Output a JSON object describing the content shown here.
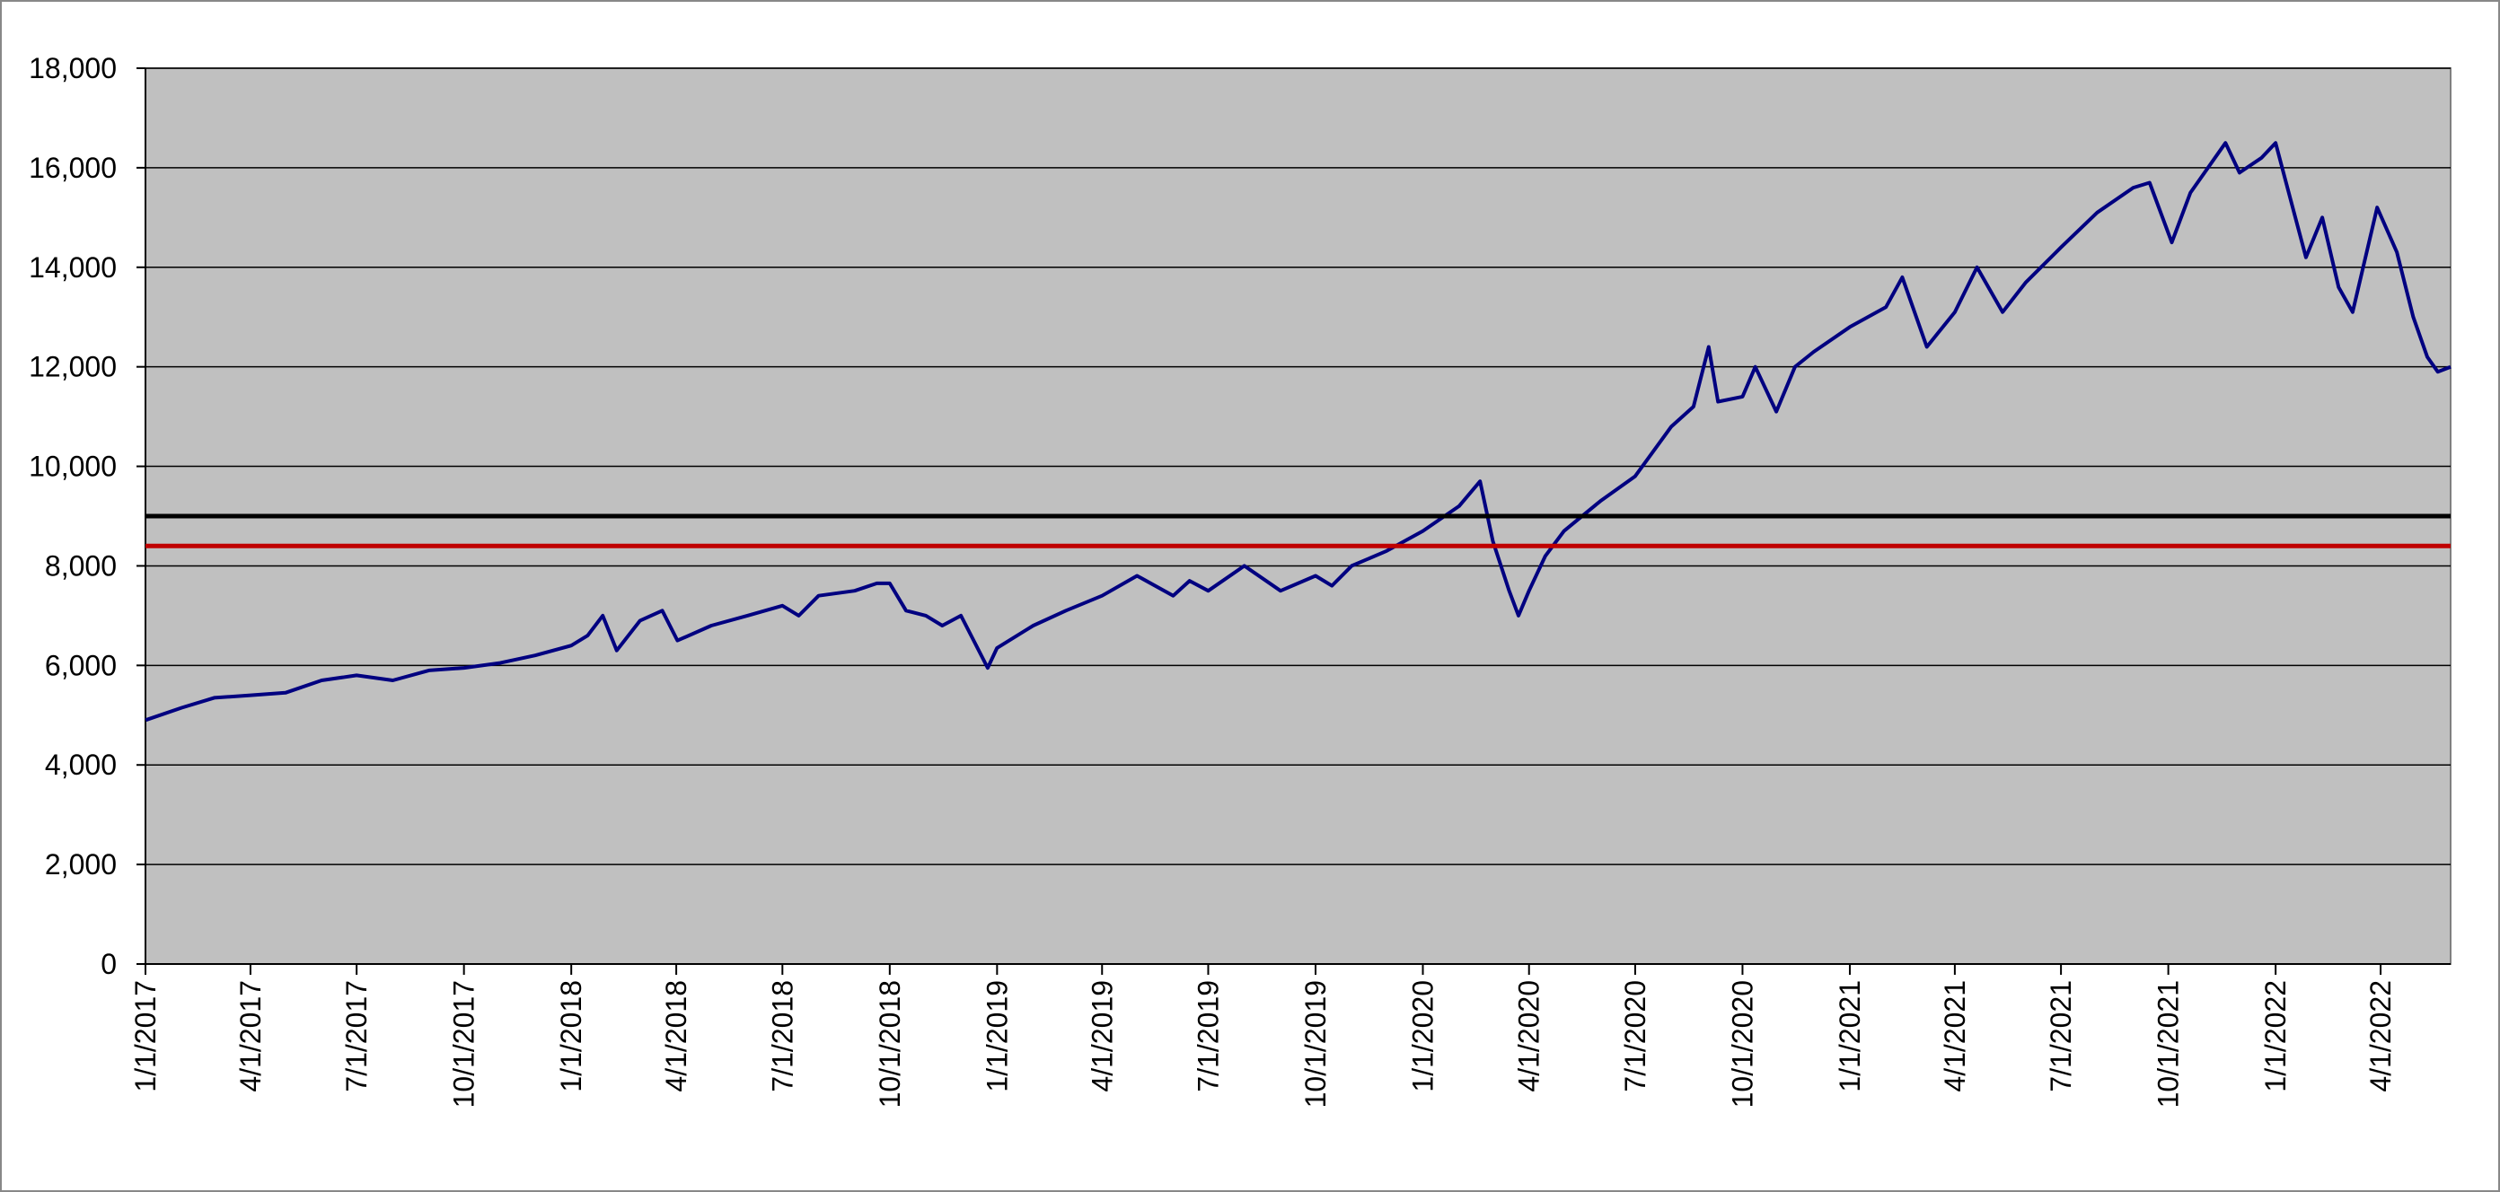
{
  "chart_data": {
    "type": "line",
    "x": [
      "1/1/2017",
      "2/1/2017",
      "3/1/2017",
      "4/1/2017",
      "5/1/2017",
      "6/1/2017",
      "7/1/2017",
      "8/1/2017",
      "9/1/2017",
      "10/1/2017",
      "11/1/2017",
      "12/1/2017",
      "1/1/2018",
      "1/15/2018",
      "1/28/2018",
      "2/9/2018",
      "3/1/2018",
      "3/20/2018",
      "4/2/2018",
      "5/1/2018",
      "6/1/2018",
      "7/1/2018",
      "7/15/2018",
      "8/1/2018",
      "9/1/2018",
      "9/20/2018",
      "10/1/2018",
      "10/15/2018",
      "11/1/2018",
      "11/15/2018",
      "12/1/2018",
      "12/24/2018",
      "1/1/2019",
      "2/1/2019",
      "3/1/2019",
      "4/1/2019",
      "5/1/2019",
      "6/1/2019",
      "6/15/2019",
      "7/1/2019",
      "8/1/2019",
      "9/1/2019",
      "10/1/2019",
      "10/15/2019",
      "11/1/2019",
      "12/1/2019",
      "1/1/2020",
      "2/1/2020",
      "2/19/2020",
      "3/1/2020",
      "3/15/2020",
      "3/23/2020",
      "4/1/2020",
      "4/15/2020",
      "5/1/2020",
      "6/1/2020",
      "7/1/2020",
      "8/1/2020",
      "8/20/2020",
      "9/2/2020",
      "9/10/2020",
      "10/1/2020",
      "10/12/2020",
      "10/30/2020",
      "11/15/2020",
      "12/1/2020",
      "1/1/2021",
      "2/1/2021",
      "2/15/2021",
      "3/8/2021",
      "4/1/2021",
      "4/20/2021",
      "5/12/2021",
      "6/1/2021",
      "7/1/2021",
      "8/1/2021",
      "9/1/2021",
      "9/15/2021",
      "10/4/2021",
      "10/20/2021",
      "11/19/2021",
      "12/1/2021",
      "12/20/2021",
      "1/1/2022",
      "1/10/2022",
      "1/27/2022",
      "2/10/2022",
      "2/24/2022",
      "3/8/2022",
      "3/29/2022",
      "4/15/2022",
      "4/29/2022",
      "5/11/2022",
      "5/20/2022",
      "5/31/2022"
    ],
    "series": [
      {
        "color": "#000080",
        "values": [
          4900,
          5150,
          5350,
          5400,
          5450,
          5700,
          5800,
          5700,
          5900,
          5950,
          6050,
          6200,
          6400,
          6600,
          7000,
          6300,
          6900,
          7100,
          6500,
          6800,
          7000,
          7200,
          7000,
          7400,
          7500,
          7650,
          7650,
          7100,
          7000,
          6800,
          7000,
          5950,
          6350,
          6800,
          7100,
          7400,
          7800,
          7400,
          7700,
          7500,
          8000,
          7500,
          7800,
          7600,
          8000,
          8300,
          8700,
          9200,
          9700,
          8500,
          7500,
          7000,
          7500,
          8200,
          8700,
          9300,
          9800,
          10800,
          11200,
          12400,
          11300,
          11400,
          12000,
          11100,
          12000,
          12300,
          12800,
          13200,
          13800,
          12400,
          13100,
          14000,
          13100,
          13700,
          14400,
          15100,
          15600,
          15700,
          14500,
          15500,
          16500,
          15900,
          16200,
          16500,
          15700,
          14200,
          15000,
          13600,
          13100,
          15200,
          14300,
          13000,
          12200,
          11900,
          12000
        ]
      }
    ],
    "hlines": [
      {
        "value": 9000,
        "color": "#000000"
      },
      {
        "value": 8400,
        "color": "#c00000"
      }
    ],
    "xlim": [
      "1/1/2017",
      "5/31/2022"
    ],
    "xticks": [
      "1/1/2017",
      "4/1/2017",
      "7/1/2017",
      "10/1/2017",
      "1/1/2018",
      "4/1/2018",
      "7/1/2018",
      "10/1/2018",
      "1/1/2019",
      "4/1/2019",
      "7/1/2019",
      "10/1/2019",
      "1/1/2020",
      "4/1/2020",
      "7/1/2020",
      "10/1/2020",
      "1/1/2021",
      "4/1/2021",
      "7/1/2021",
      "10/1/2021",
      "1/1/2022",
      "4/1/2022"
    ],
    "ylim": [
      0,
      18000
    ],
    "yticks": [
      {
        "value": 0,
        "label": "0"
      },
      {
        "value": 2000,
        "label": "2,000"
      },
      {
        "value": 4000,
        "label": "4,000"
      },
      {
        "value": 6000,
        "label": "6,000"
      },
      {
        "value": 8000,
        "label": "8,000"
      },
      {
        "value": 10000,
        "label": "10,000"
      },
      {
        "value": 12000,
        "label": "12,000"
      },
      {
        "value": 14000,
        "label": "14,000"
      },
      {
        "value": 16000,
        "label": "16,000"
      },
      {
        "value": 18000,
        "label": "18,000"
      }
    ],
    "grid": true,
    "plot_background": "#c0c0c0"
  }
}
